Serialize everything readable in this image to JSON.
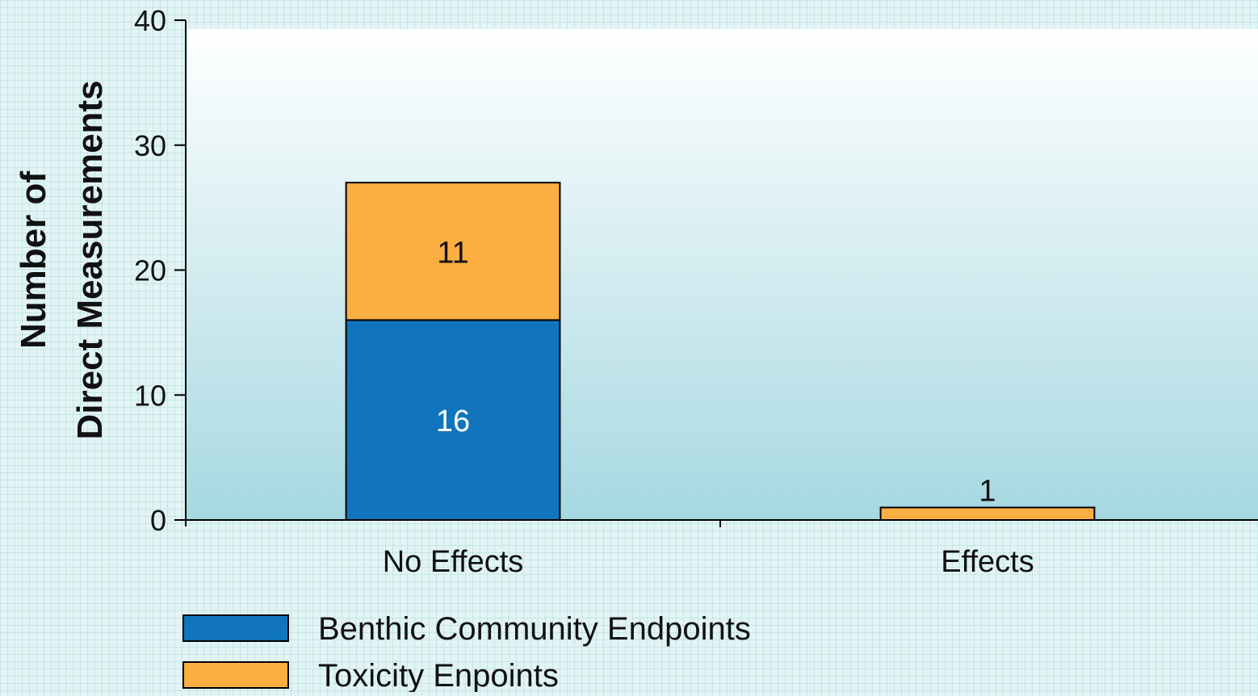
{
  "chart_data": {
    "type": "bar",
    "stacked": true,
    "title": "",
    "xlabel": "",
    "ylabel_lines": [
      "Number of",
      "Direct Measurements"
    ],
    "ylim": [
      0,
      40
    ],
    "yticks": [
      0,
      10,
      20,
      30,
      40
    ],
    "categories": [
      "No Effects",
      "Effects"
    ],
    "series": [
      {
        "name": "Benthic Community Endpoints",
        "color": "#1175bd",
        "values": [
          16,
          0
        ],
        "labels": [
          "16",
          null
        ],
        "label_color": "#ffffff"
      },
      {
        "name": "Toxicity Enpoints",
        "color": "#fbae42",
        "values": [
          11,
          1
        ],
        "labels": [
          "11",
          "1"
        ],
        "label_color": "#111111"
      }
    ],
    "grid": false,
    "legend_position": "bottom-left"
  },
  "colors": {
    "plot_top": "#ffffff",
    "plot_bottom": "#a6d8e1",
    "axis": "#000000"
  }
}
